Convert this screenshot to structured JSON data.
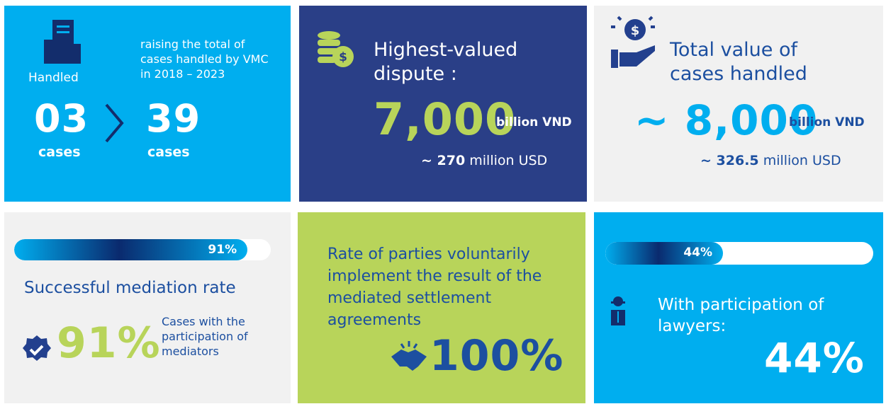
{
  "tiles": [
    {
      "handled": "Handled",
      "before": "03",
      "before_unit": "cases",
      "note": "raising the total of cases handled by VMC in 2018 – 2023",
      "total": "39",
      "total_unit": "cases"
    },
    {
      "title": "Highest-valued dispute :",
      "amount": "7,000",
      "amount_unit": "billion VND",
      "usd": "~ 270",
      "usd_unit": "million USD"
    },
    {
      "title": "Total value of cases handled",
      "amount": "~ 8,000",
      "amount_unit": "billion VND",
      "usd": "~ 326.5",
      "usd_unit": "million USD"
    },
    {
      "progress": {
        "value": 91,
        "label": "91%",
        "xlim": [
          0,
          100
        ]
      },
      "title": "Successful mediation rate",
      "note": "Cases with the participation of mediators"
    },
    {
      "title": "Rate of parties voluntarily implement the result of the mediated settlement agreements",
      "figure": "100%"
    },
    {
      "progress": {
        "value": 44,
        "label": "44%",
        "xlim": [
          0,
          100
        ]
      },
      "title": "With participation of lawyers:"
    }
  ]
}
